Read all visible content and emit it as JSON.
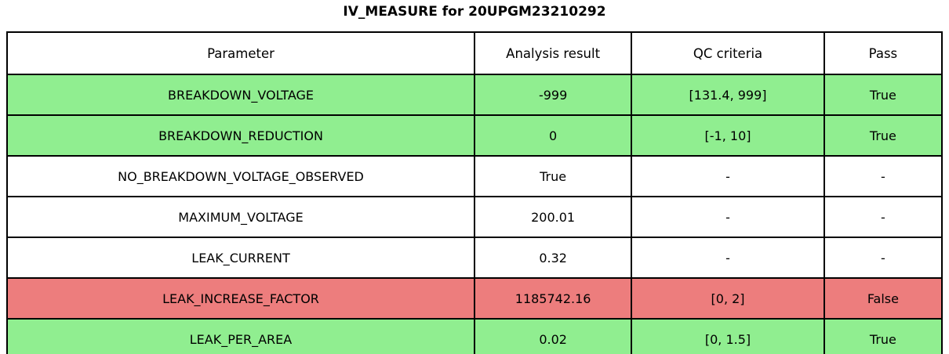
{
  "chart_data": {
    "type": "table",
    "title": "IV_MEASURE for 20UPGM23210292",
    "columns": [
      "Parameter",
      "Analysis result",
      "QC criteria",
      "Pass"
    ],
    "rows": [
      {
        "parameter": "BREAKDOWN_VOLTAGE",
        "analysis_result": "-999",
        "qc_criteria": "[131.4, 999]",
        "pass": "True",
        "status": "pass"
      },
      {
        "parameter": "BREAKDOWN_REDUCTION",
        "analysis_result": "0",
        "qc_criteria": "[-1, 10]",
        "pass": "True",
        "status": "pass"
      },
      {
        "parameter": "NO_BREAKDOWN_VOLTAGE_OBSERVED",
        "analysis_result": "True",
        "qc_criteria": "-",
        "pass": "-",
        "status": "none"
      },
      {
        "parameter": "MAXIMUM_VOLTAGE",
        "analysis_result": "200.01",
        "qc_criteria": "-",
        "pass": "-",
        "status": "none"
      },
      {
        "parameter": "LEAK_CURRENT",
        "analysis_result": "0.32",
        "qc_criteria": "-",
        "pass": "-",
        "status": "none"
      },
      {
        "parameter": "LEAK_INCREASE_FACTOR",
        "analysis_result": "1185742.16",
        "qc_criteria": "[0, 2]",
        "pass": "False",
        "status": "fail"
      },
      {
        "parameter": "LEAK_PER_AREA",
        "analysis_result": "0.02",
        "qc_criteria": "[0, 1.5]",
        "pass": "True",
        "status": "pass"
      }
    ],
    "status_colors": {
      "pass": "#90EE90",
      "fail": "#ED7D7D",
      "none": "#FFFFFF"
    },
    "layout": {
      "grid": "full-borders",
      "header_background": "#FFFFFF",
      "border_color": "#000000"
    }
  }
}
